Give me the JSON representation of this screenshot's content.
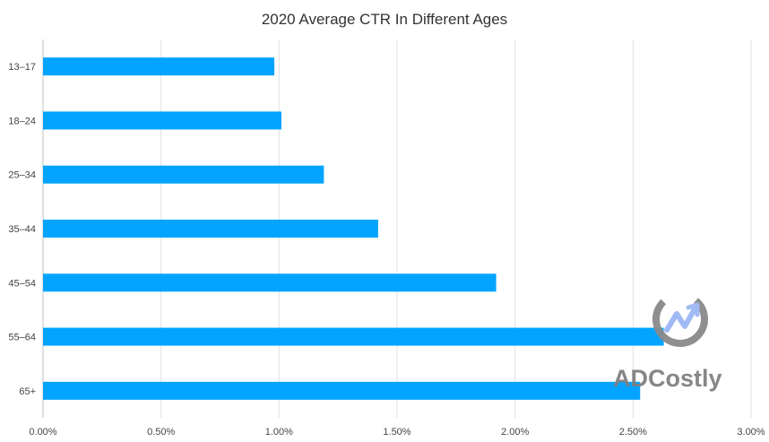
{
  "chart_data": {
    "type": "bar",
    "orientation": "horizontal",
    "title": "2020 Average CTR In Different Ages",
    "xlabel": "",
    "ylabel": "",
    "categories": [
      "13–17",
      "18–24",
      "25–34",
      "35–44",
      "45–54",
      "55–64",
      "65+"
    ],
    "values": [
      0.98,
      1.01,
      1.19,
      1.42,
      1.92,
      2.63,
      2.53
    ],
    "value_unit": "%",
    "xlim": [
      0,
      3.0
    ],
    "xticks": [
      "0.00%",
      "0.50%",
      "1.00%",
      "1.50%",
      "2.00%",
      "2.50%",
      "3.00%"
    ],
    "grid": "vertical",
    "legend": "none",
    "bar_color": "#03a4ff"
  },
  "watermark": {
    "text": "ADCostly",
    "color": "#808080",
    "accent_color": "#9db6f5"
  }
}
